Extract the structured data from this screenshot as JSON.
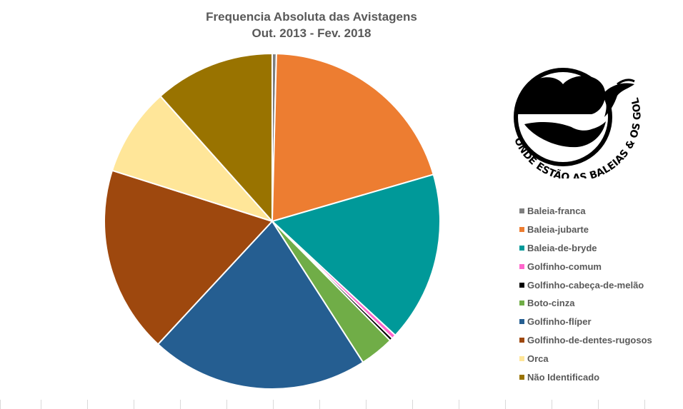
{
  "chart_data": {
    "type": "pie",
    "title": "Frequencia Absoluta das Avistagens",
    "subtitle": "Out. 2013 - Fev. 2018",
    "categories": [
      "Baleia-franca",
      "Baleia-jubarte",
      "Baleia-de-bryde",
      "Golfinho-comum",
      "Golfinho-cabeça-de-melão",
      "Boto-cinza",
      "Golfinho-flíper",
      "Golfinho-de-dentes-rugosos",
      "Orca",
      "Não Identificado"
    ],
    "values": [
      0.4,
      20.1,
      16.4,
      0.4,
      0.3,
      3.3,
      21.0,
      18.0,
      8.5,
      11.6
    ],
    "colors": [
      "#7f7f7f",
      "#ed7d31",
      "#009999",
      "#ff66cc",
      "#000000",
      "#70ad47",
      "#255e91",
      "#9e480e",
      "#ffe699",
      "#997300"
    ],
    "legend_position": "right"
  },
  "logo": {
    "text_arc": "ONDE ESTÃO AS BALEIAS & OS GOLFINHOS?"
  }
}
